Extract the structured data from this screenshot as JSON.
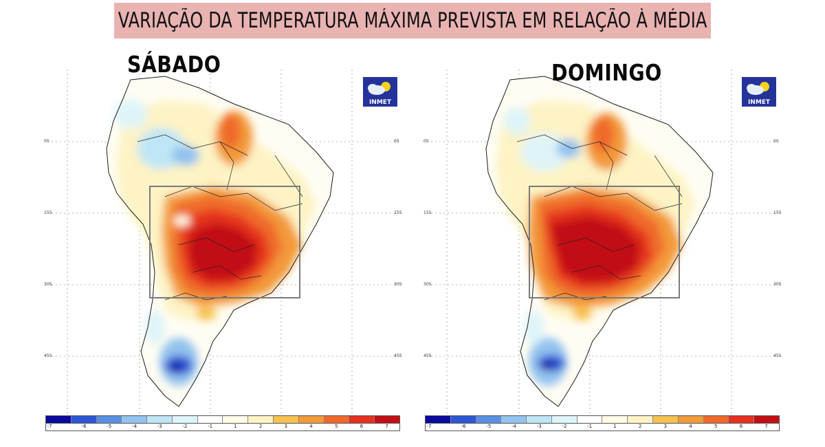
{
  "title": "VARIAÇÃO DA TEMPERATURA MÁXIMA PREVISTA EM RELAÇÃO À MÉDIA",
  "panels": [
    {
      "day": "SÁBADO",
      "logo": "INMET",
      "lat_labels": [
        "0S",
        "15S",
        "30S",
        "45S"
      ]
    },
    {
      "day": "DOMINGO",
      "logo": "INMET",
      "lat_labels": [
        "0S",
        "15S",
        "30S",
        "45S"
      ]
    }
  ],
  "colorbar": {
    "ticks": [
      "-7",
      "-6",
      "-5",
      "-4",
      "-3",
      "-2",
      "-1",
      "1",
      "2",
      "3",
      "4",
      "5",
      "6",
      "7"
    ],
    "colors": [
      "#0b0a9e",
      "#2d57d6",
      "#5b8fe6",
      "#93c3ef",
      "#bfe6f6",
      "#dff4f8",
      "#ffffff",
      "#fffbe6",
      "#fdf3c4",
      "#f7c24f",
      "#f39a3b",
      "#ef6a2a",
      "#e4321f",
      "#c20f16"
    ]
  },
  "legend_title": "",
  "icons": {
    "logo": "inmet-logo-icon"
  }
}
